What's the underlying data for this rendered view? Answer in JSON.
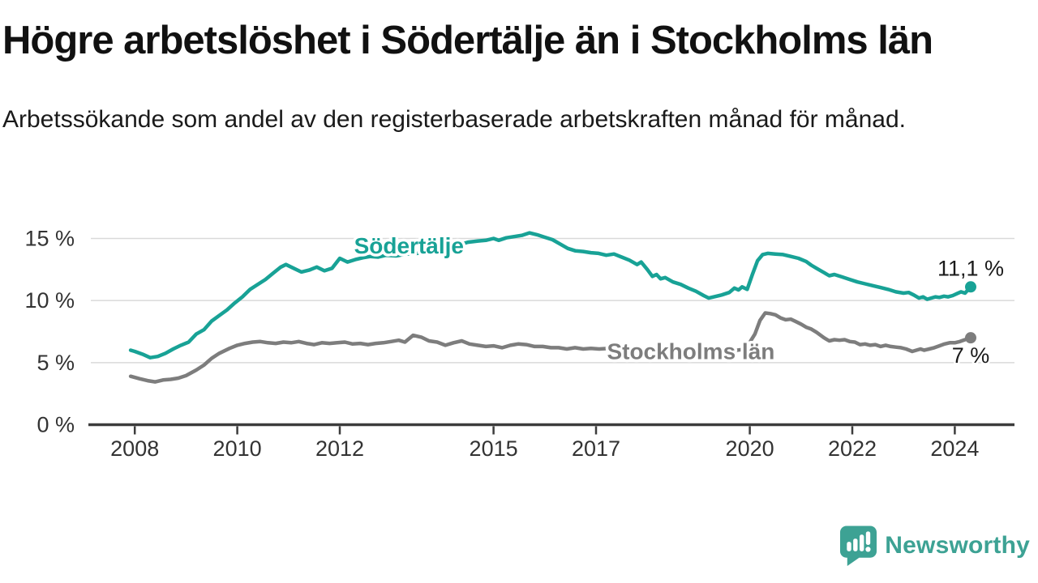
{
  "branding": {
    "name": "Newsworthy",
    "color": "#3da294"
  },
  "colors": {
    "background": "#ffffff",
    "title": "#111111",
    "subtitle": "#1a1a1a",
    "grid": "#d9d9d9",
    "axis": "#3c3c3c",
    "tick_text": "#333333",
    "annotation_text": "#1a1a1a",
    "sodertalje": "#18a296",
    "stockholm": "#7d7d7d"
  },
  "chart_data": {
    "type": "line",
    "title": "Högre arbetslöshet i Södertälje än i Stockholms län",
    "subtitle": "Arbetssökande som andel av den registerbaserade arbetskraften månad för månad.",
    "xlabel": "",
    "ylabel": "",
    "x_unit": "year (monthly observations)",
    "y_unit": "percent",
    "xlim": [
      2007.8,
      2024.95
    ],
    "ylim": [
      0,
      16.5
    ],
    "grid": "horizontal",
    "legend": "inline labels on lines",
    "x_ticks": [
      2008,
      2010,
      2012,
      2015,
      2017,
      2020,
      2022,
      2024
    ],
    "y_ticks": [
      {
        "value": 0,
        "label": "0 %"
      },
      {
        "value": 5,
        "label": "5 %"
      },
      {
        "value": 10,
        "label": "10 %"
      },
      {
        "value": 15,
        "label": "15 %"
      }
    ],
    "series": [
      {
        "name": "Södertälje",
        "color": "#18a296",
        "end_label": "11,1 %",
        "end_value": 11.1,
        "label_anchor": {
          "x": 2013.35,
          "y": 14.45
        },
        "points": [
          [
            2007.92,
            6.0
          ],
          [
            2008.0,
            5.9
          ],
          [
            2008.17,
            5.65
          ],
          [
            2008.3,
            5.4
          ],
          [
            2008.45,
            5.5
          ],
          [
            2008.6,
            5.75
          ],
          [
            2008.75,
            6.1
          ],
          [
            2008.9,
            6.4
          ],
          [
            2009.05,
            6.65
          ],
          [
            2009.2,
            7.3
          ],
          [
            2009.35,
            7.65
          ],
          [
            2009.5,
            8.35
          ],
          [
            2009.65,
            8.8
          ],
          [
            2009.8,
            9.25
          ],
          [
            2009.95,
            9.8
          ],
          [
            2010.1,
            10.3
          ],
          [
            2010.25,
            10.9
          ],
          [
            2010.4,
            11.3
          ],
          [
            2010.55,
            11.7
          ],
          [
            2010.7,
            12.2
          ],
          [
            2010.85,
            12.7
          ],
          [
            2010.95,
            12.9
          ],
          [
            2011.1,
            12.6
          ],
          [
            2011.25,
            12.3
          ],
          [
            2011.4,
            12.45
          ],
          [
            2011.55,
            12.7
          ],
          [
            2011.7,
            12.4
          ],
          [
            2011.85,
            12.6
          ],
          [
            2012.0,
            13.4
          ],
          [
            2012.15,
            13.1
          ],
          [
            2012.3,
            13.3
          ],
          [
            2012.45,
            13.45
          ],
          [
            2012.6,
            13.55
          ],
          [
            2012.75,
            13.5
          ],
          [
            2012.9,
            13.65
          ],
          [
            2013.1,
            13.6
          ],
          [
            2013.3,
            13.75
          ],
          [
            2013.5,
            13.8
          ],
          [
            2013.7,
            13.9
          ],
          [
            2013.9,
            14.05
          ],
          [
            2014.1,
            14.25
          ],
          [
            2014.3,
            14.45
          ],
          [
            2014.5,
            14.7
          ],
          [
            2014.7,
            14.8
          ],
          [
            2014.85,
            14.85
          ],
          [
            2015.0,
            15.0
          ],
          [
            2015.1,
            14.85
          ],
          [
            2015.25,
            15.05
          ],
          [
            2015.4,
            15.15
          ],
          [
            2015.55,
            15.25
          ],
          [
            2015.7,
            15.45
          ],
          [
            2015.85,
            15.3
          ],
          [
            2016.0,
            15.1
          ],
          [
            2016.15,
            14.9
          ],
          [
            2016.3,
            14.55
          ],
          [
            2016.45,
            14.2
          ],
          [
            2016.6,
            14.0
          ],
          [
            2016.75,
            13.95
          ],
          [
            2016.9,
            13.85
          ],
          [
            2017.05,
            13.8
          ],
          [
            2017.2,
            13.65
          ],
          [
            2017.35,
            13.75
          ],
          [
            2017.5,
            13.5
          ],
          [
            2017.65,
            13.25
          ],
          [
            2017.8,
            12.9
          ],
          [
            2017.88,
            13.1
          ],
          [
            2018.0,
            12.5
          ],
          [
            2018.1,
            11.95
          ],
          [
            2018.18,
            12.1
          ],
          [
            2018.26,
            11.75
          ],
          [
            2018.35,
            11.85
          ],
          [
            2018.5,
            11.5
          ],
          [
            2018.65,
            11.3
          ],
          [
            2018.8,
            11.0
          ],
          [
            2018.95,
            10.75
          ],
          [
            2019.1,
            10.4
          ],
          [
            2019.2,
            10.2
          ],
          [
            2019.3,
            10.3
          ],
          [
            2019.45,
            10.45
          ],
          [
            2019.6,
            10.65
          ],
          [
            2019.7,
            11.0
          ],
          [
            2019.78,
            10.85
          ],
          [
            2019.85,
            11.1
          ],
          [
            2019.95,
            10.9
          ],
          [
            2020.05,
            12.1
          ],
          [
            2020.15,
            13.2
          ],
          [
            2020.25,
            13.7
          ],
          [
            2020.35,
            13.8
          ],
          [
            2020.5,
            13.75
          ],
          [
            2020.65,
            13.7
          ],
          [
            2020.8,
            13.55
          ],
          [
            2020.95,
            13.4
          ],
          [
            2021.1,
            13.15
          ],
          [
            2021.2,
            12.85
          ],
          [
            2021.3,
            12.6
          ],
          [
            2021.45,
            12.25
          ],
          [
            2021.55,
            12.0
          ],
          [
            2021.65,
            12.1
          ],
          [
            2021.8,
            11.9
          ],
          [
            2021.95,
            11.7
          ],
          [
            2022.1,
            11.5
          ],
          [
            2022.25,
            11.35
          ],
          [
            2022.4,
            11.2
          ],
          [
            2022.55,
            11.05
          ],
          [
            2022.7,
            10.9
          ],
          [
            2022.85,
            10.7
          ],
          [
            2023.0,
            10.6
          ],
          [
            2023.1,
            10.65
          ],
          [
            2023.2,
            10.45
          ],
          [
            2023.3,
            10.2
          ],
          [
            2023.38,
            10.3
          ],
          [
            2023.46,
            10.1
          ],
          [
            2023.54,
            10.2
          ],
          [
            2023.62,
            10.3
          ],
          [
            2023.7,
            10.25
          ],
          [
            2023.79,
            10.35
          ],
          [
            2023.87,
            10.3
          ],
          [
            2023.96,
            10.4
          ],
          [
            2024.04,
            10.55
          ],
          [
            2024.12,
            10.7
          ],
          [
            2024.2,
            10.6
          ],
          [
            2024.31,
            11.1
          ]
        ]
      },
      {
        "name": "Stockholms län",
        "color": "#7d7d7d",
        "end_label": "7 %",
        "end_value": 7.0,
        "label_anchor": {
          "x": 2018.85,
          "y": 5.95
        },
        "points": [
          [
            2007.92,
            3.9
          ],
          [
            2008.1,
            3.7
          ],
          [
            2008.25,
            3.55
          ],
          [
            2008.4,
            3.45
          ],
          [
            2008.55,
            3.6
          ],
          [
            2008.7,
            3.65
          ],
          [
            2008.85,
            3.75
          ],
          [
            2009.0,
            3.95
          ],
          [
            2009.2,
            4.4
          ],
          [
            2009.35,
            4.8
          ],
          [
            2009.5,
            5.35
          ],
          [
            2009.65,
            5.75
          ],
          [
            2009.85,
            6.15
          ],
          [
            2010.0,
            6.4
          ],
          [
            2010.15,
            6.55
          ],
          [
            2010.3,
            6.65
          ],
          [
            2010.45,
            6.7
          ],
          [
            2010.6,
            6.6
          ],
          [
            2010.75,
            6.55
          ],
          [
            2010.9,
            6.65
          ],
          [
            2011.05,
            6.6
          ],
          [
            2011.2,
            6.7
          ],
          [
            2011.35,
            6.55
          ],
          [
            2011.5,
            6.45
          ],
          [
            2011.65,
            6.6
          ],
          [
            2011.8,
            6.55
          ],
          [
            2011.95,
            6.6
          ],
          [
            2012.1,
            6.65
          ],
          [
            2012.25,
            6.5
          ],
          [
            2012.4,
            6.55
          ],
          [
            2012.55,
            6.45
          ],
          [
            2012.7,
            6.55
          ],
          [
            2012.85,
            6.6
          ],
          [
            2013.0,
            6.7
          ],
          [
            2013.15,
            6.8
          ],
          [
            2013.27,
            6.65
          ],
          [
            2013.43,
            7.2
          ],
          [
            2013.59,
            7.05
          ],
          [
            2013.74,
            6.75
          ],
          [
            2013.9,
            6.65
          ],
          [
            2014.06,
            6.4
          ],
          [
            2014.22,
            6.6
          ],
          [
            2014.38,
            6.75
          ],
          [
            2014.53,
            6.5
          ],
          [
            2014.69,
            6.4
          ],
          [
            2014.85,
            6.3
          ],
          [
            2015.0,
            6.35
          ],
          [
            2015.17,
            6.2
          ],
          [
            2015.33,
            6.4
          ],
          [
            2015.48,
            6.5
          ],
          [
            2015.64,
            6.45
          ],
          [
            2015.8,
            6.3
          ],
          [
            2015.96,
            6.3
          ],
          [
            2016.12,
            6.2
          ],
          [
            2016.27,
            6.2
          ],
          [
            2016.43,
            6.1
          ],
          [
            2016.59,
            6.2
          ],
          [
            2016.75,
            6.1
          ],
          [
            2016.9,
            6.15
          ],
          [
            2017.06,
            6.1
          ],
          [
            2017.25,
            6.15
          ],
          [
            2017.45,
            6.05
          ],
          [
            2017.65,
            6.1
          ],
          [
            2017.85,
            6.0
          ],
          [
            2018.05,
            5.95
          ],
          [
            2018.25,
            6.0
          ],
          [
            2018.45,
            5.9
          ],
          [
            2018.65,
            5.85
          ],
          [
            2018.85,
            5.9
          ],
          [
            2019.05,
            5.85
          ],
          [
            2019.25,
            5.8
          ],
          [
            2019.45,
            5.85
          ],
          [
            2019.65,
            5.95
          ],
          [
            2019.85,
            6.05
          ],
          [
            2019.95,
            6.3
          ],
          [
            2020.1,
            7.3
          ],
          [
            2020.2,
            8.4
          ],
          [
            2020.3,
            9.0
          ],
          [
            2020.4,
            8.95
          ],
          [
            2020.5,
            8.85
          ],
          [
            2020.6,
            8.6
          ],
          [
            2020.7,
            8.45
          ],
          [
            2020.8,
            8.5
          ],
          [
            2020.9,
            8.3
          ],
          [
            2021.0,
            8.1
          ],
          [
            2021.1,
            7.85
          ],
          [
            2021.2,
            7.7
          ],
          [
            2021.3,
            7.45
          ],
          [
            2021.45,
            7.0
          ],
          [
            2021.55,
            6.75
          ],
          [
            2021.65,
            6.85
          ],
          [
            2021.75,
            6.8
          ],
          [
            2021.85,
            6.85
          ],
          [
            2021.95,
            6.7
          ],
          [
            2022.05,
            6.65
          ],
          [
            2022.15,
            6.45
          ],
          [
            2022.25,
            6.5
          ],
          [
            2022.35,
            6.4
          ],
          [
            2022.45,
            6.45
          ],
          [
            2022.55,
            6.3
          ],
          [
            2022.65,
            6.4
          ],
          [
            2022.75,
            6.3
          ],
          [
            2022.85,
            6.25
          ],
          [
            2022.95,
            6.2
          ],
          [
            2023.05,
            6.1
          ],
          [
            2023.17,
            5.9
          ],
          [
            2023.25,
            6.0
          ],
          [
            2023.33,
            6.1
          ],
          [
            2023.4,
            6.0
          ],
          [
            2023.5,
            6.1
          ],
          [
            2023.6,
            6.2
          ],
          [
            2023.7,
            6.35
          ],
          [
            2023.8,
            6.5
          ],
          [
            2023.9,
            6.6
          ],
          [
            2024.0,
            6.6
          ],
          [
            2024.1,
            6.7
          ],
          [
            2024.2,
            6.85
          ],
          [
            2024.31,
            7.0
          ]
        ]
      }
    ]
  }
}
